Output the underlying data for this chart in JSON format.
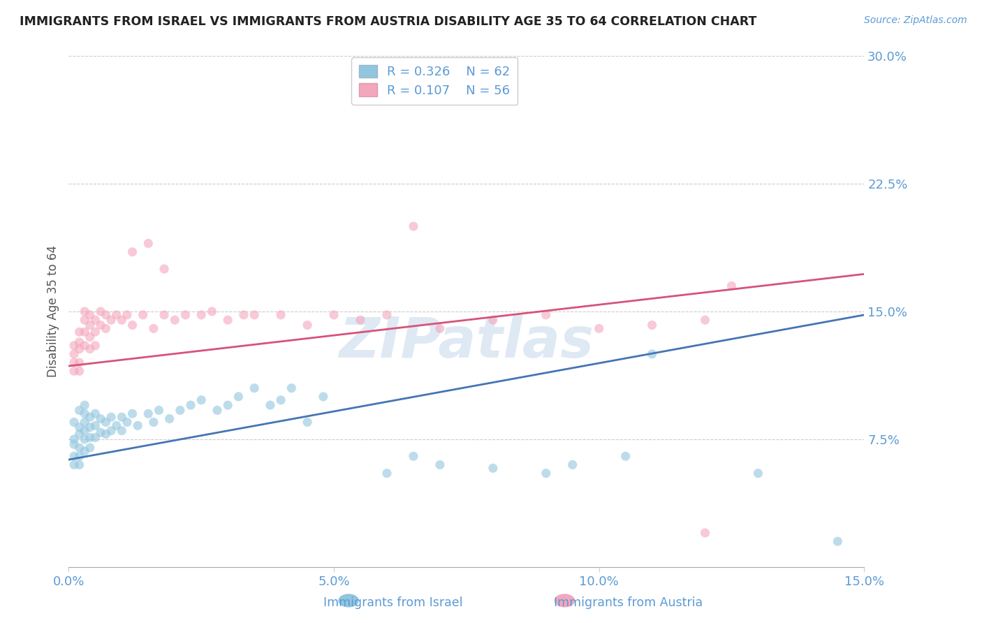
{
  "title": "IMMIGRANTS FROM ISRAEL VS IMMIGRANTS FROM AUSTRIA DISABILITY AGE 35 TO 64 CORRELATION CHART",
  "source_text": "Source: ZipAtlas.com",
  "ylabel": "Disability Age 35 to 64",
  "legend_label1": "Immigrants from Israel",
  "legend_label2": "Immigrants from Austria",
  "R1": 0.326,
  "N1": 62,
  "R2": 0.107,
  "N2": 56,
  "color_israel": "#92c5de",
  "color_austria": "#f4a6bc",
  "trendline_color_israel": "#4575b4",
  "trendline_color_austria": "#d6537a",
  "xlim": [
    0.0,
    0.15
  ],
  "ylim": [
    0.0,
    0.3
  ],
  "xticks": [
    0.0,
    0.05,
    0.1,
    0.15
  ],
  "yticks": [
    0.0,
    0.075,
    0.15,
    0.225,
    0.3
  ],
  "xticklabels": [
    "0.0%",
    "5.0%",
    "10.0%",
    "15.0%"
  ],
  "yticklabels": [
    "",
    "7.5%",
    "15.0%",
    "22.5%",
    "30.0%"
  ],
  "watermark": "ZIPatlas",
  "background_color": "#ffffff",
  "tick_color": "#5b9bd5",
  "title_color": "#222222",
  "ylabel_color": "#555555",
  "israel_trendline_x0": 0.0,
  "israel_trendline_y0": 0.063,
  "israel_trendline_x1": 0.15,
  "israel_trendline_y1": 0.148,
  "austria_trendline_x0": 0.0,
  "austria_trendline_y0": 0.118,
  "austria_trendline_x1": 0.15,
  "austria_trendline_y1": 0.172,
  "israel_x": [
    0.001,
    0.001,
    0.001,
    0.001,
    0.001,
    0.002,
    0.002,
    0.002,
    0.002,
    0.002,
    0.002,
    0.003,
    0.003,
    0.003,
    0.003,
    0.003,
    0.003,
    0.004,
    0.004,
    0.004,
    0.004,
    0.005,
    0.005,
    0.005,
    0.006,
    0.006,
    0.007,
    0.007,
    0.008,
    0.008,
    0.009,
    0.01,
    0.01,
    0.011,
    0.012,
    0.013,
    0.015,
    0.016,
    0.017,
    0.019,
    0.021,
    0.023,
    0.025,
    0.028,
    0.03,
    0.032,
    0.035,
    0.038,
    0.04,
    0.042,
    0.045,
    0.048,
    0.06,
    0.065,
    0.07,
    0.08,
    0.09,
    0.095,
    0.105,
    0.11,
    0.13,
    0.145
  ],
  "israel_y": [
    0.085,
    0.075,
    0.072,
    0.065,
    0.06,
    0.092,
    0.082,
    0.078,
    0.07,
    0.065,
    0.06,
    0.095,
    0.09,
    0.085,
    0.08,
    0.075,
    0.068,
    0.088,
    0.082,
    0.076,
    0.07,
    0.09,
    0.083,
    0.076,
    0.087,
    0.079,
    0.085,
    0.078,
    0.088,
    0.08,
    0.083,
    0.088,
    0.08,
    0.085,
    0.09,
    0.083,
    0.09,
    0.085,
    0.092,
    0.087,
    0.092,
    0.095,
    0.098,
    0.092,
    0.095,
    0.1,
    0.105,
    0.095,
    0.098,
    0.105,
    0.085,
    0.1,
    0.055,
    0.065,
    0.06,
    0.058,
    0.055,
    0.06,
    0.065,
    0.125,
    0.055,
    0.015
  ],
  "austria_x": [
    0.001,
    0.001,
    0.001,
    0.001,
    0.002,
    0.002,
    0.002,
    0.002,
    0.002,
    0.003,
    0.003,
    0.003,
    0.003,
    0.004,
    0.004,
    0.004,
    0.004,
    0.005,
    0.005,
    0.005,
    0.006,
    0.006,
    0.007,
    0.007,
    0.008,
    0.009,
    0.01,
    0.011,
    0.012,
    0.014,
    0.016,
    0.018,
    0.02,
    0.022,
    0.025,
    0.027,
    0.03,
    0.033,
    0.035,
    0.04,
    0.045,
    0.05,
    0.055,
    0.06,
    0.065,
    0.07,
    0.08,
    0.09,
    0.1,
    0.11,
    0.12,
    0.012,
    0.015,
    0.018,
    0.12,
    0.125
  ],
  "austria_y": [
    0.13,
    0.125,
    0.12,
    0.115,
    0.138,
    0.132,
    0.128,
    0.12,
    0.115,
    0.15,
    0.145,
    0.138,
    0.13,
    0.148,
    0.142,
    0.135,
    0.128,
    0.145,
    0.138,
    0.13,
    0.15,
    0.142,
    0.148,
    0.14,
    0.145,
    0.148,
    0.145,
    0.148,
    0.142,
    0.148,
    0.14,
    0.148,
    0.145,
    0.148,
    0.148,
    0.15,
    0.145,
    0.148,
    0.148,
    0.148,
    0.142,
    0.148,
    0.145,
    0.148,
    0.2,
    0.14,
    0.145,
    0.148,
    0.14,
    0.142,
    0.145,
    0.185,
    0.19,
    0.175,
    0.02,
    0.165
  ]
}
